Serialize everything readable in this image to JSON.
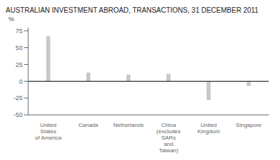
{
  "chart_data": {
    "type": "bar",
    "title": "AUSTRALIAN INVESTMENT ABROAD, TRANSACTIONS, 31 DECEMBER 2011",
    "ylabel": "%",
    "categories": [
      "United\nStates\nof America",
      "Canada",
      "Netherlands",
      "China\n(excludes\nSARs\nand\nTaiwan)",
      "United\nKingdom",
      "Singapore"
    ],
    "values": [
      67,
      13,
      10,
      11,
      -28,
      -7
    ],
    "color": "#c8c8c8",
    "ylim": [
      -50,
      80
    ],
    "yticks": [
      -50,
      -25,
      0,
      25,
      50,
      75
    ],
    "grid": false
  }
}
